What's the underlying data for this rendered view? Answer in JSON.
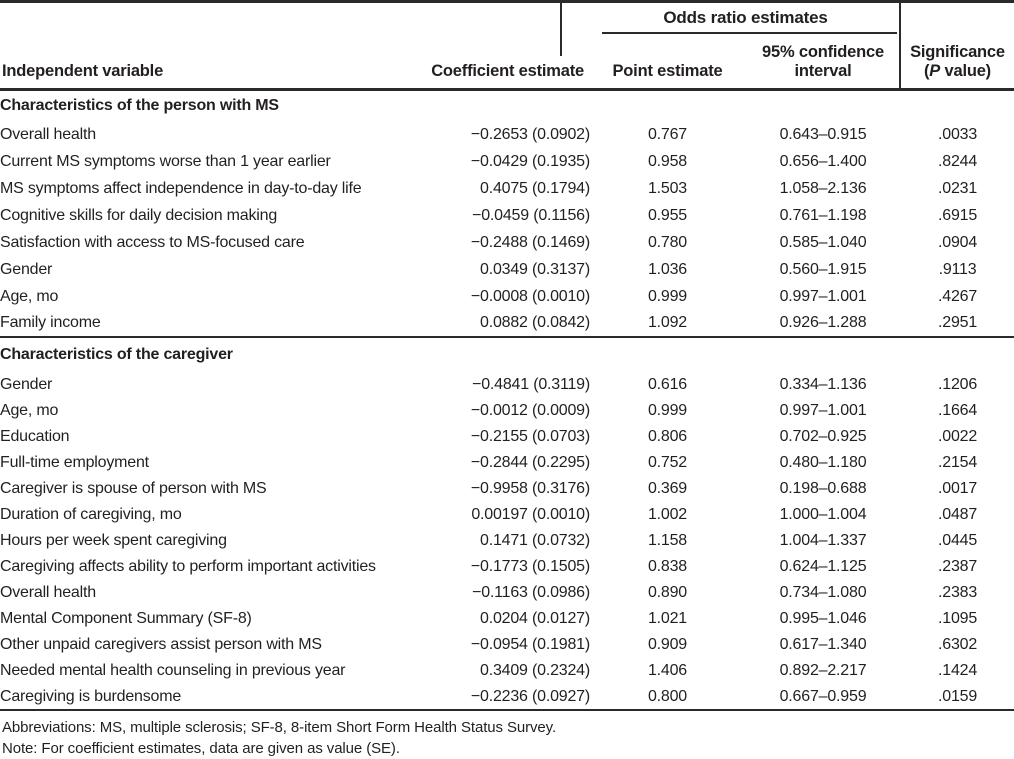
{
  "table": {
    "header": {
      "spanner": "Odds ratio estimates",
      "independent_variable": "Independent variable",
      "coefficient_estimate": "Coefficient estimate",
      "point_estimate": "Point estimate",
      "ci_line1": "95% confidence",
      "ci_line2": "interval",
      "significance_line1": "Significance",
      "sig_open": "(",
      "sig_p": "P",
      "sig_close": " value)"
    },
    "sections": [
      {
        "header": "Characteristics of the person with MS",
        "rows": [
          {
            "variable": "Overall health",
            "coefficient": "−0.2653 (0.0902)",
            "point": "0.767",
            "ci": "0.643–0.915",
            "p": ".0033"
          },
          {
            "variable": "Current MS symptoms worse than 1 year earlier",
            "coefficient": "−0.0429 (0.1935)",
            "point": "0.958",
            "ci": "0.656–1.400",
            "p": ".8244"
          },
          {
            "variable": "MS symptoms affect independence in day-to-day life",
            "coefficient": "0.4075 (0.1794)",
            "point": "1.503",
            "ci": "1.058–2.136",
            "p": ".0231"
          },
          {
            "variable": "Cognitive skills for daily decision making",
            "coefficient": "−0.0459 (0.1156)",
            "point": "0.955",
            "ci": "0.761–1.198",
            "p": ".6915"
          },
          {
            "variable": "Satisfaction with access to MS-focused care",
            "coefficient": "−0.2488 (0.1469)",
            "point": "0.780",
            "ci": "0.585–1.040",
            "p": ".0904"
          },
          {
            "variable": "Gender",
            "coefficient": "0.0349 (0.3137)",
            "point": "1.036",
            "ci": "0.560–1.915",
            "p": ".9113"
          },
          {
            "variable": "Age, mo",
            "coefficient": "−0.0008 (0.0010)",
            "point": "0.999",
            "ci": "0.997–1.001",
            "p": ".4267"
          },
          {
            "variable": "Family income",
            "coefficient": "0.0882 (0.0842)",
            "point": "1.092",
            "ci": "0.926–1.288",
            "p": ".2951"
          }
        ]
      },
      {
        "header": "Characteristics of the caregiver",
        "rows": [
          {
            "variable": "Gender",
            "coefficient": "−0.4841 (0.3119)",
            "point": "0.616",
            "ci": "0.334–1.136",
            "p": ".1206"
          },
          {
            "variable": "Age, mo",
            "coefficient": "−0.0012 (0.0009)",
            "point": "0.999",
            "ci": "0.997–1.001",
            "p": ".1664"
          },
          {
            "variable": "Education",
            "coefficient": "−0.2155 (0.0703)",
            "point": "0.806",
            "ci": "0.702–0.925",
            "p": ".0022"
          },
          {
            "variable": "Full-time employment",
            "coefficient": "−0.2844 (0.2295)",
            "point": "0.752",
            "ci": "0.480–1.180",
            "p": ".2154"
          },
          {
            "variable": "Caregiver is spouse of person with MS",
            "coefficient": "−0.9958 (0.3176)",
            "point": "0.369",
            "ci": "0.198–0.688",
            "p": ".0017"
          },
          {
            "variable": "Duration of caregiving, mo",
            "coefficient": "0.00197 (0.0010)",
            "point": "1.002",
            "ci": "1.000–1.004",
            "p": ".0487"
          },
          {
            "variable": "Hours per week spent caregiving",
            "coefficient": "0.1471 (0.0732)",
            "point": "1.158",
            "ci": "1.004–1.337",
            "p": ".0445"
          },
          {
            "variable": "Caregiving affects ability to perform important activities",
            "coefficient": "−0.1773 (0.1505)",
            "point": "0.838",
            "ci": "0.624–1.125",
            "p": ".2387"
          },
          {
            "variable": "Overall health",
            "coefficient": "−0.1163 (0.0986)",
            "point": "0.890",
            "ci": "0.734–1.080",
            "p": ".2383"
          },
          {
            "variable": "Mental Component Summary (SF-8)",
            "coefficient": "0.0204 (0.0127)",
            "point": "1.021",
            "ci": "0.995–1.046",
            "p": ".1095"
          },
          {
            "variable": "Other unpaid caregivers assist person with MS",
            "coefficient": "−0.0954 (0.1981)",
            "point": "0.909",
            "ci": "0.617–1.340",
            "p": ".6302"
          },
          {
            "variable": "Needed mental health counseling in previous year",
            "coefficient": "0.3409 (0.2324)",
            "point": "1.406",
            "ci": "0.892–2.217",
            "p": ".1424"
          },
          {
            "variable": "Caregiving is burdensome",
            "coefficient": "−0.2236 (0.0927)",
            "point": "0.800",
            "ci": "0.667–0.959",
            "p": ".0159"
          }
        ]
      }
    ],
    "footnotes": {
      "abbreviations": "Abbreviations: MS, multiple sclerosis; SF-8, 8-item Short Form Health Status Survey.",
      "note": "Note: For coefficient estimates, data are given as value (SE)."
    },
    "colors": {
      "ink": "#231f20",
      "rule": "#2a2a2a",
      "background": "#ffffff"
    }
  }
}
